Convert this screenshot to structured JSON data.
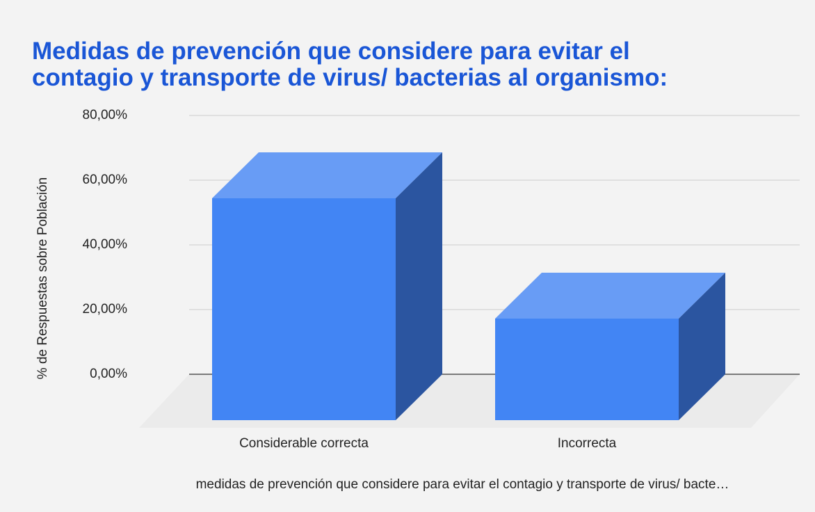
{
  "chart_data": {
    "type": "bar3d",
    "title": "Medidas de prevención que considere para evitar el contagio y transporte de virus/ bacterias al organismo:",
    "title_lines": [
      "Medidas de prevención que considere para evitar el",
      "contagio y transporte de virus/ bacterias al organismo:"
    ],
    "ylabel": "% de Respuestas sobre Población",
    "xlabel": "medidas de prevención que considere para evitar el contagio y transporte de virus/ bacte…",
    "categories": [
      "Considerable correcta",
      "Incorrecta"
    ],
    "values": [
      68.6,
      31.4
    ],
    "color": "#4285f4",
    "ylim": [
      0,
      80
    ],
    "yticks": [
      {
        "value": 0,
        "label": "0,00%"
      },
      {
        "value": 20,
        "label": "20,00%"
      },
      {
        "value": 40,
        "label": "40,00%"
      },
      {
        "value": 60,
        "label": "60,00%"
      },
      {
        "value": 80,
        "label": "80,00%"
      }
    ],
    "grid": true
  }
}
